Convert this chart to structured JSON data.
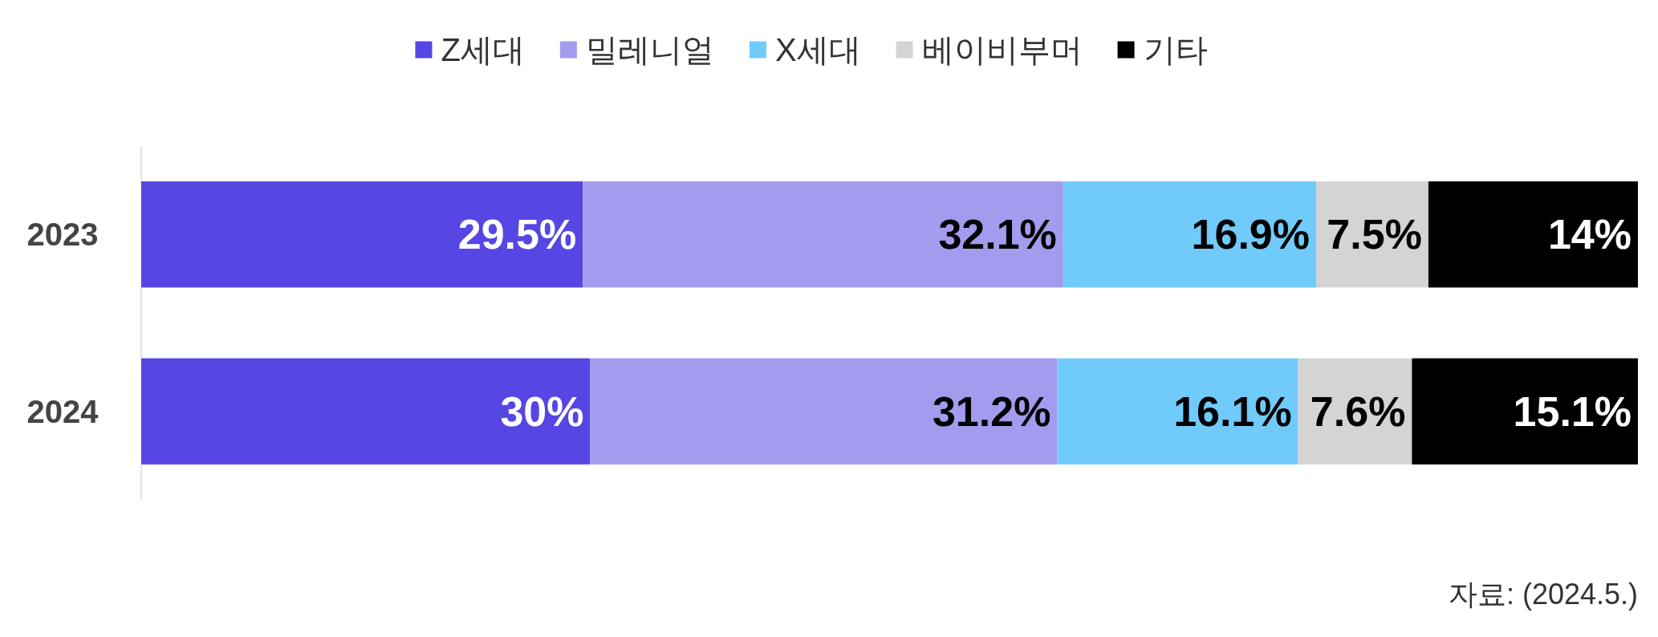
{
  "chart_data": {
    "type": "bar",
    "orientation": "horizontal",
    "stacked": true,
    "categories": [
      "2023",
      "2024"
    ],
    "series": [
      {
        "name": "Z세대",
        "color": "#5646e3",
        "values": [
          29.5,
          30
        ],
        "value_labels": [
          "29.5%",
          "30%"
        ]
      },
      {
        "name": "밀레니얼",
        "color": "#a29bee",
        "values": [
          32.1,
          31.2
        ],
        "value_labels": [
          "32.1%",
          "31.2%"
        ]
      },
      {
        "name": "X세대",
        "color": "#70cbfa",
        "values": [
          16.9,
          16.1
        ],
        "value_labels": [
          "16.9%",
          "16.1%"
        ]
      },
      {
        "name": "베이비부머",
        "color": "#d4d4d4",
        "values": [
          7.5,
          7.6
        ],
        "value_labels": [
          "7.5%",
          "7.6%"
        ]
      },
      {
        "name": "기타",
        "color": "#000000",
        "values": [
          14,
          15.1
        ],
        "value_labels": [
          "14%",
          "15.1%"
        ]
      }
    ],
    "xlim": [
      0,
      100
    ],
    "tick_labels": "y",
    "legend": "top",
    "annotations": [
      "자료: (2024.5.)"
    ]
  }
}
